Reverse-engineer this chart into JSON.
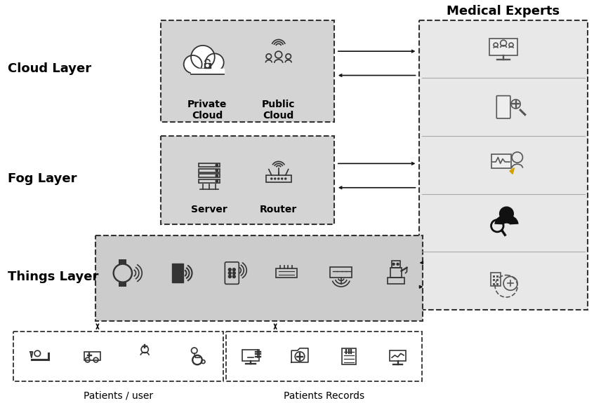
{
  "bg": "#ffffff",
  "medical_experts_title": "Medical Experts",
  "patients_user_label": "Patients / user",
  "patients_records_label": "Patients Records",
  "layer_names": [
    "Cloud Layer",
    "Fog Layer",
    "Things Layer"
  ],
  "cloud_labels": [
    "Private\nCloud",
    "Public\nCloud"
  ],
  "fog_labels": [
    "Server",
    "Router"
  ],
  "gray_fill": "#d4d4d4",
  "gray_fill_things": "#cccccc",
  "gray_fill_me": "#e8e8e8",
  "edge_color": "#333333",
  "arrow_color": "#111111",
  "label_fs": 13,
  "sub_fs": 9,
  "me_title_fs": 13
}
